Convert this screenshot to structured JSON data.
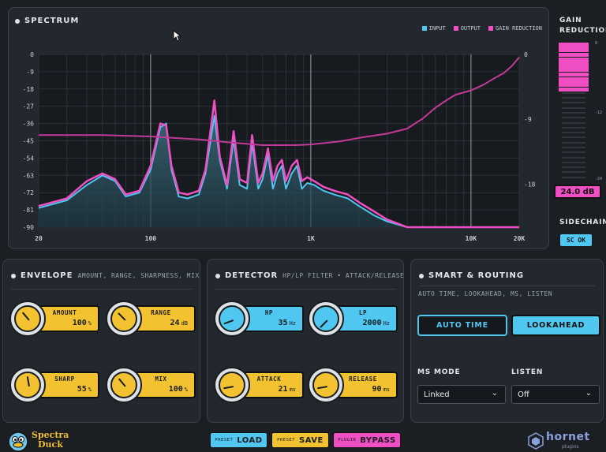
{
  "colors": {
    "cyan": "#4fc7f0",
    "magenta": "#ef4fc3",
    "yellow": "#f2c230",
    "panel": "#23282e",
    "bg": "#1b1f24"
  },
  "spectrum": {
    "title": "SPECTRUM",
    "legend": [
      {
        "label": "INPUT",
        "color": "#4fc7f0"
      },
      {
        "label": "OUTPUT",
        "color": "#ef4fc3"
      },
      {
        "label": "GAIN REDUCTION",
        "color": "#ef4fc3"
      }
    ]
  },
  "chart_data": {
    "type": "line",
    "x_scale": "log",
    "xlim": [
      20,
      20000
    ],
    "x_ticks": [
      20,
      100,
      1000,
      10000,
      20000
    ],
    "x_tick_labels": [
      "20",
      "100",
      "1K",
      "10K",
      "20K"
    ],
    "ylim": [
      -90,
      0
    ],
    "y_ticks": [
      "0",
      "-9",
      "-18",
      "-27",
      "-36",
      "-45",
      "-54",
      "-63",
      "-72",
      "-81",
      "-90"
    ],
    "y2_ticks": [
      "0",
      "-9",
      "-18"
    ],
    "y2lim": [
      -24,
      0
    ],
    "series": [
      {
        "name": "INPUT",
        "points": [
          [
            20,
            -80
          ],
          [
            30,
            -76
          ],
          [
            40,
            -68
          ],
          [
            50,
            -63
          ],
          [
            60,
            -66
          ],
          [
            70,
            -74
          ],
          [
            85,
            -72
          ],
          [
            100,
            -60
          ],
          [
            115,
            -38
          ],
          [
            125,
            -36
          ],
          [
            135,
            -60
          ],
          [
            150,
            -74
          ],
          [
            170,
            -75
          ],
          [
            200,
            -73
          ],
          [
            220,
            -62
          ],
          [
            250,
            -32
          ],
          [
            270,
            -55
          ],
          [
            300,
            -70
          ],
          [
            330,
            -44
          ],
          [
            360,
            -68
          ],
          [
            400,
            -70
          ],
          [
            430,
            -46
          ],
          [
            470,
            -70
          ],
          [
            500,
            -65
          ],
          [
            540,
            -52
          ],
          [
            580,
            -70
          ],
          [
            620,
            -62
          ],
          [
            660,
            -58
          ],
          [
            700,
            -70
          ],
          [
            760,
            -62
          ],
          [
            820,
            -58
          ],
          [
            880,
            -70
          ],
          [
            950,
            -67
          ],
          [
            1050,
            -68
          ],
          [
            1200,
            -71
          ],
          [
            1400,
            -73
          ],
          [
            1700,
            -75
          ],
          [
            2000,
            -79
          ],
          [
            2500,
            -84
          ],
          [
            3000,
            -87
          ],
          [
            4000,
            -90
          ],
          [
            20000,
            -90
          ]
        ]
      },
      {
        "name": "OUTPUT",
        "points": [
          [
            20,
            -79
          ],
          [
            30,
            -75
          ],
          [
            40,
            -66
          ],
          [
            50,
            -62
          ],
          [
            60,
            -65
          ],
          [
            70,
            -73
          ],
          [
            85,
            -71
          ],
          [
            100,
            -58
          ],
          [
            115,
            -36
          ],
          [
            125,
            -37
          ],
          [
            135,
            -58
          ],
          [
            150,
            -72
          ],
          [
            170,
            -73
          ],
          [
            200,
            -71
          ],
          [
            220,
            -60
          ],
          [
            250,
            -24
          ],
          [
            270,
            -53
          ],
          [
            300,
            -68
          ],
          [
            330,
            -40
          ],
          [
            360,
            -65
          ],
          [
            400,
            -67
          ],
          [
            430,
            -42
          ],
          [
            470,
            -67
          ],
          [
            500,
            -62
          ],
          [
            540,
            -49
          ],
          [
            580,
            -66
          ],
          [
            620,
            -58
          ],
          [
            660,
            -55
          ],
          [
            700,
            -66
          ],
          [
            760,
            -58
          ],
          [
            820,
            -55
          ],
          [
            880,
            -66
          ],
          [
            950,
            -64
          ],
          [
            1050,
            -66
          ],
          [
            1200,
            -69
          ],
          [
            1400,
            -71
          ],
          [
            1700,
            -73
          ],
          [
            2000,
            -77
          ],
          [
            2500,
            -82
          ],
          [
            3000,
            -86
          ],
          [
            4000,
            -90
          ],
          [
            20000,
            -90
          ]
        ]
      },
      {
        "name": "GAIN REDUCTION",
        "axis": "right",
        "points": [
          [
            20,
            -11.2
          ],
          [
            50,
            -11.2
          ],
          [
            100,
            -11.4
          ],
          [
            200,
            -11.8
          ],
          [
            300,
            -12.2
          ],
          [
            500,
            -12.6
          ],
          [
            800,
            -12.6
          ],
          [
            1000,
            -12.5
          ],
          [
            1500,
            -12.1
          ],
          [
            2000,
            -11.6
          ],
          [
            3000,
            -11.0
          ],
          [
            4000,
            -10.3
          ],
          [
            5000,
            -8.9
          ],
          [
            6000,
            -7.4
          ],
          [
            7000,
            -6.4
          ],
          [
            8000,
            -5.6
          ],
          [
            10000,
            -5.0
          ],
          [
            12000,
            -4.2
          ],
          [
            14000,
            -3.3
          ],
          [
            16000,
            -2.6
          ],
          [
            18000,
            -1.6
          ],
          [
            20000,
            -0.4
          ]
        ]
      }
    ]
  },
  "gain_reduction": {
    "title_line1": "GAIN",
    "title_line2": "REDUCTION",
    "value": "24.0 dB",
    "level": 0.35,
    "tick_labels": [
      "0",
      "-12",
      "-24"
    ]
  },
  "sidechain": {
    "title": "SIDECHAIN",
    "button": "SC OK"
  },
  "envelope": {
    "title": "ENVELOPE",
    "subtitle": "AMOUNT, RANGE, SHARPNESS, MIX",
    "knobs": [
      {
        "label": "AMOUNT",
        "value": "100",
        "unit": "%"
      },
      {
        "label": "RANGE",
        "value": "24",
        "unit": "dB"
      },
      {
        "label": "SHARP",
        "value": "55",
        "unit": "%"
      },
      {
        "label": "MIX",
        "value": "100",
        "unit": "%"
      }
    ]
  },
  "detector": {
    "title": "DETECTOR",
    "subtitle": "HP/LP FILTER • ATTACK/RELEASE",
    "knobs": [
      {
        "label": "HP",
        "value": "35",
        "unit": "Hz"
      },
      {
        "label": "LP",
        "value": "2000",
        "unit": "Hz"
      },
      {
        "label": "ATTACK",
        "value": "21",
        "unit": "ms"
      },
      {
        "label": "RELEASE",
        "value": "90",
        "unit": "ms"
      }
    ]
  },
  "smart": {
    "title": "SMART & ROUTING",
    "subtitle": "AUTO TIME, LOOKAHEAD, MS, LISTEN",
    "auto_time": "AUTO TIME",
    "lookahead": "LOOKAHEAD",
    "ms_mode_label": "MS MODE",
    "ms_mode_value": "Linked",
    "listen_label": "LISTEN",
    "listen_value": "Off"
  },
  "footer": {
    "brand_line1": "Spectra",
    "brand_line2": "Duck",
    "load_small": "PRESET",
    "load": "LOAD",
    "save_small": "PRESET",
    "save": "SAVE",
    "bypass_small": "PLUGIN",
    "bypass": "BYPASS",
    "hornet_line1": "hornet",
    "hornet_line2": "plugins"
  }
}
